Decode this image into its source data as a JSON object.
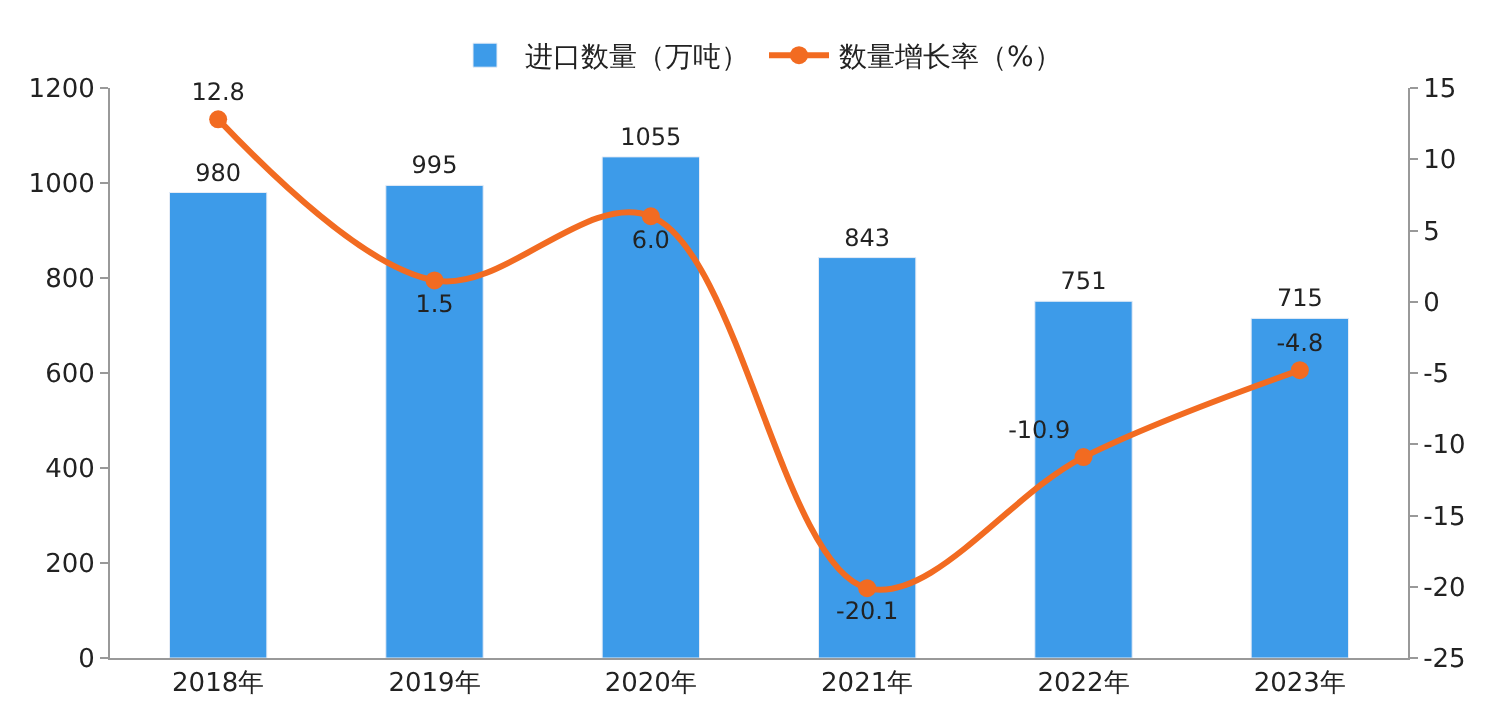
{
  "chart_data": {
    "type": "bar",
    "categories": [
      "2018年",
      "2019年",
      "2020年",
      "2021年",
      "2022年",
      "2023年"
    ],
    "series": [
      {
        "name": "进口数量（万吨）",
        "color": "#3d9be9",
        "values": [
          980,
          995,
          1055,
          843,
          751,
          715
        ]
      },
      {
        "name": "数量增长率（%）",
        "type": "line",
        "axis": "y2",
        "color": "#f26b21",
        "marker": "circle",
        "values": [
          12.8,
          1.5,
          6.0,
          -20.1,
          -10.9,
          -4.8
        ],
        "value_labels": [
          "12.8",
          "1.5",
          "6.0",
          "-20.1",
          "-10.9",
          "-4.8"
        ]
      }
    ],
    "ylim": [
      0,
      1200
    ],
    "yticks": [
      0,
      200,
      400,
      600,
      800,
      1000,
      1200
    ],
    "y2lim": [
      -25,
      15
    ],
    "y2ticks": [
      -25,
      -20,
      -15,
      -10,
      -5,
      0,
      5,
      10,
      15
    ],
    "data_labels": true,
    "legend": "top"
  }
}
